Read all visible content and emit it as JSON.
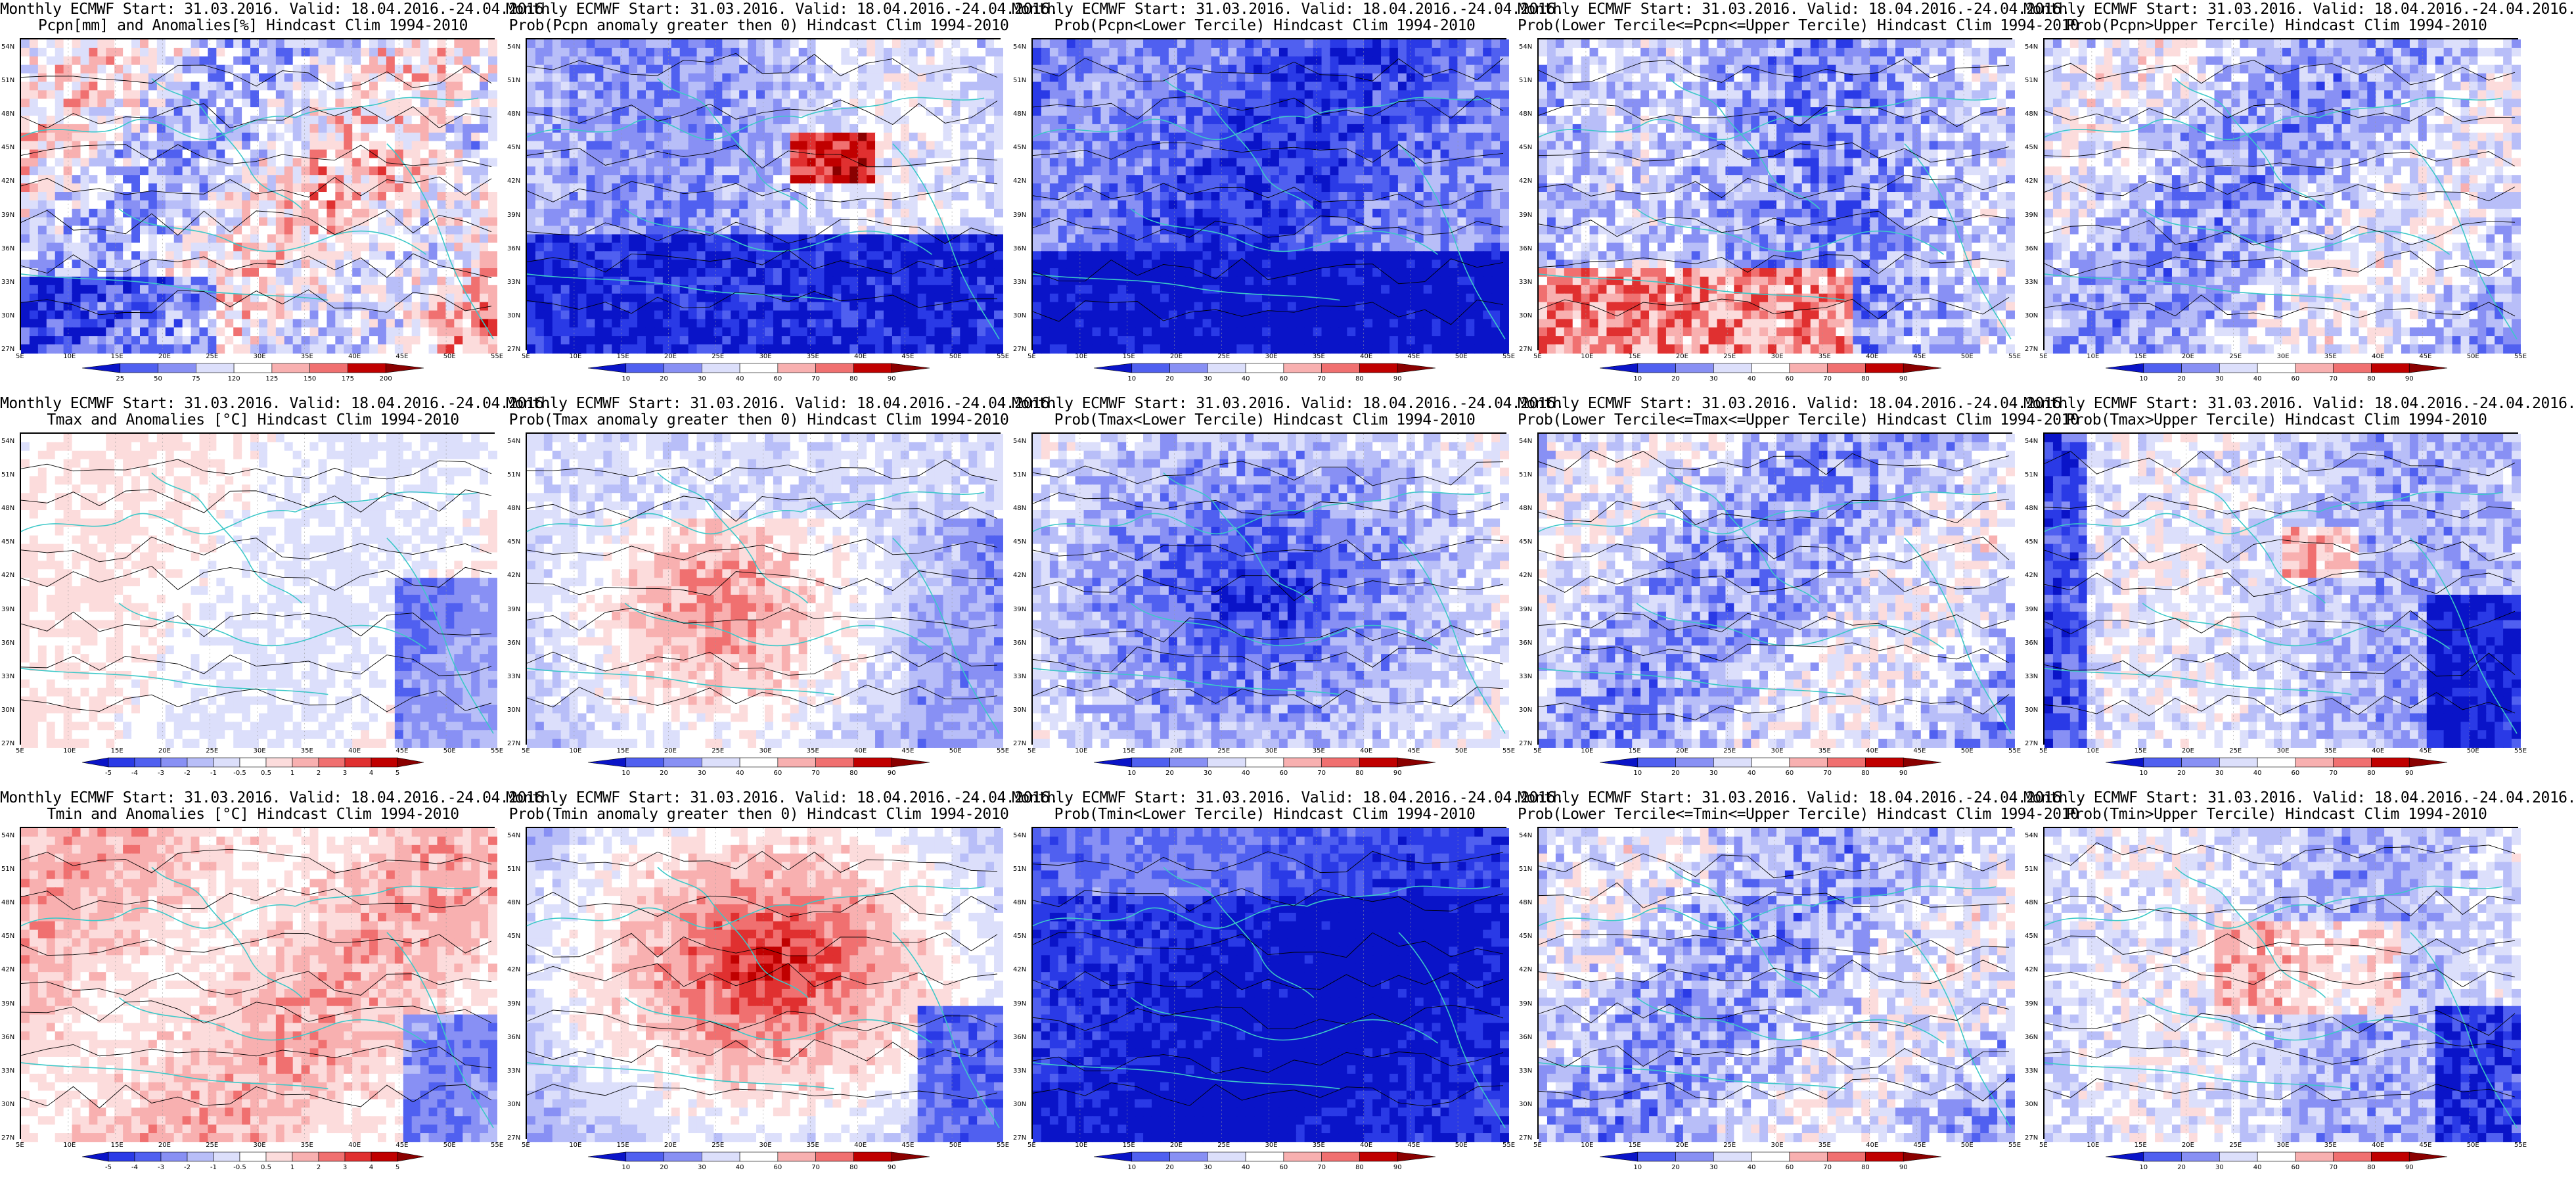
{
  "lat_labels": [
    "54N",
    "51N",
    "48N",
    "45N",
    "42N",
    "39N",
    "36N",
    "33N",
    "30N",
    "27N"
  ],
  "lon_labels": [
    "5E",
    "10E",
    "15E",
    "20E",
    "25E",
    "30E",
    "35E",
    "40E",
    "45E",
    "50E",
    "55E"
  ],
  "panels": [
    {
      "id": "pcpn-anom",
      "title1": "Monthly ECMWF Start: 31.03.2016. Valid: 18.04.2016.-24.04.2016.",
      "title2": "Pcpn[mm] and Anomalies[%] Hindcast Clim 1994-2010",
      "scale": "anom_pcpn",
      "ticks": [
        "25",
        "50",
        "75",
        "120",
        "125",
        "150",
        "175",
        "200"
      ],
      "pattern": "pcpn"
    },
    {
      "id": "pcpn-prob-gt0",
      "title1": "Monthly ECMWF Start: 31.03.2016. Valid: 18.04.2016.-24.04.2016.",
      "title2": "Prob(Pcpn anomaly greater then 0) Hindcast Clim 1994-2010",
      "scale": "prob",
      "ticks": [
        "10",
        "20",
        "30",
        "40",
        "60",
        "70",
        "80",
        "90"
      ],
      "pattern": "blue_south"
    },
    {
      "id": "pcpn-prob-lower",
      "title1": "Monthly ECMWF Start: 31.03.2016. Valid: 18.04.2016.-24.04.2016.",
      "title2": "Prob(Pcpn<Lower Tercile) Hindcast Clim 1994-2010",
      "scale": "prob",
      "ticks": [
        "10",
        "20",
        "30",
        "40",
        "60",
        "70",
        "80",
        "90"
      ],
      "pattern": "deep_blue"
    },
    {
      "id": "pcpn-prob-normal",
      "title1": "Monthly ECMWF Start: 31.03.2016. Valid: 18.04.2016.-24.04.2016.",
      "title2": "Prob(Lower Tercile<=Pcpn<=Upper Tercile) Hindcast Clim 1994-2010",
      "scale": "prob",
      "ticks": [
        "10",
        "20",
        "30",
        "40",
        "60",
        "70",
        "80",
        "90"
      ],
      "pattern": "mixed_red_south"
    },
    {
      "id": "pcpn-prob-upper",
      "title1": "Monthly ECMWF Start: 31.03.2016. Valid: 18.04.2016.-24.04.2016.",
      "title2": "Prob(Pcpn>Upper Tercile) Hindcast Clim 1994-2010",
      "scale": "prob",
      "ticks": [
        "10",
        "20",
        "30",
        "40",
        "60",
        "70",
        "80",
        "90"
      ],
      "pattern": "light_blue"
    },
    {
      "id": "tmax-anom",
      "title1": "Monthly ECMWF Start: 31.03.2016. Valid: 18.04.2016.-24.04.2016.",
      "title2": "Tmax and Anomalies [°C] Hindcast Clim 1994-2010",
      "scale": "anom_temp",
      "ticks": [
        "-5",
        "-4",
        "-3",
        "-2",
        "-1",
        "-0.5",
        "0.5",
        "1",
        "2",
        "3",
        "4",
        "5"
      ],
      "pattern": "pale_mixed"
    },
    {
      "id": "tmax-prob-gt0",
      "title1": "Monthly ECMWF Start: 31.03.2016. Valid: 18.04.2016.-24.04.2016.",
      "title2": "Prob(Tmax anomaly greater then 0) Hindcast Clim 1994-2010",
      "scale": "prob",
      "ticks": [
        "10",
        "20",
        "30",
        "40",
        "60",
        "70",
        "80",
        "90"
      ],
      "pattern": "red_center"
    },
    {
      "id": "tmax-prob-lower",
      "title1": "Monthly ECMWF Start: 31.03.2016. Valid: 18.04.2016.-24.04.2016.",
      "title2": "Prob(Tmax<Lower Tercile) Hindcast Clim 1994-2010",
      "scale": "prob",
      "ticks": [
        "10",
        "20",
        "30",
        "40",
        "60",
        "70",
        "80",
        "90"
      ],
      "pattern": "blue_center"
    },
    {
      "id": "tmax-prob-normal",
      "title1": "Monthly ECMWF Start: 31.03.2016. Valid: 18.04.2016.-24.04.2016.",
      "title2": "Prob(Lower Tercile<=Tmax<=Upper Tercile) Hindcast Clim 1994-2010",
      "scale": "prob",
      "ticks": [
        "10",
        "20",
        "30",
        "40",
        "60",
        "70",
        "80",
        "90"
      ],
      "pattern": "light_blue"
    },
    {
      "id": "tmax-prob-upper",
      "title1": "Monthly ECMWF Start: 31.03.2016. Valid: 18.04.2016.-24.04.2016.",
      "title2": "Prob(Tmax>Upper Tercile) Hindcast Clim 1994-2010",
      "scale": "prob",
      "ticks": [
        "10",
        "20",
        "30",
        "40",
        "60",
        "70",
        "80",
        "90"
      ],
      "pattern": "blue_edges"
    },
    {
      "id": "tmin-anom",
      "title1": "Monthly ECMWF Start: 31.03.2016. Valid: 18.04.2016.-24.04.2016.",
      "title2": "Tmin and Anomalies [°C] Hindcast Clim 1994-2010",
      "scale": "anom_temp",
      "ticks": [
        "-5",
        "-4",
        "-3",
        "-2",
        "-1",
        "-0.5",
        "0.5",
        "1",
        "2",
        "3",
        "4",
        "5"
      ],
      "pattern": "pink"
    },
    {
      "id": "tmin-prob-gt0",
      "title1": "Monthly ECMWF Start: 31.03.2016. Valid: 18.04.2016.-24.04.2016.",
      "title2": "Prob(Tmin anomaly greater then 0) Hindcast Clim 1994-2010",
      "scale": "prob",
      "ticks": [
        "10",
        "20",
        "30",
        "40",
        "60",
        "70",
        "80",
        "90"
      ],
      "pattern": "red_strong"
    },
    {
      "id": "tmin-prob-lower",
      "title1": "Monthly ECMWF Start: 31.03.2016. Valid: 18.04.2016.-24.04.2016.",
      "title2": "Prob(Tmin<Lower Tercile) Hindcast Clim 1994-2010",
      "scale": "prob",
      "ticks": [
        "10",
        "20",
        "30",
        "40",
        "60",
        "70",
        "80",
        "90"
      ],
      "pattern": "deep_blue_all"
    },
    {
      "id": "tmin-prob-normal",
      "title1": "Monthly ECMWF Start: 31.03.2016. Valid: 18.04.2016.-24.04.2016.",
      "title2": "Prob(Lower Tercile<=Tmin<=Upper Tercile) Hindcast Clim 1994-2010",
      "scale": "prob",
      "ticks": [
        "10",
        "20",
        "30",
        "40",
        "60",
        "70",
        "80",
        "90"
      ],
      "pattern": "light_blue"
    },
    {
      "id": "tmin-prob-upper",
      "title1": "Monthly ECMWF Start: 31.03.2016. Valid: 18.04.2016.-24.04.2016.",
      "title2": "Prob(Tmin>Upper Tercile) Hindcast Clim 1994-2010",
      "scale": "prob",
      "ticks": [
        "10",
        "20",
        "30",
        "40",
        "60",
        "70",
        "80",
        "90"
      ],
      "pattern": "mixed_red_center"
    }
  ],
  "colors": {
    "scale_blue_red": [
      "#0a14c8",
      "#2a3ae6",
      "#5060f0",
      "#8890f4",
      "#b8bef8",
      "#dcdffb",
      "#ffffff",
      "#fcdcdc",
      "#f8b0b0",
      "#f07070",
      "#e03030",
      "#c00000",
      "#8a0000"
    ],
    "coast": "#3cc8c8",
    "contour": "#000000"
  }
}
